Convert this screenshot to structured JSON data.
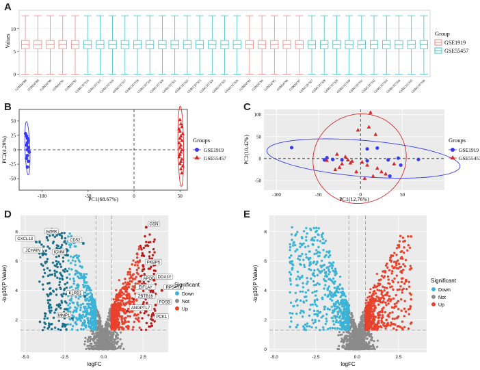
{
  "panel_labels": {
    "a": "A",
    "b": "B",
    "c": "C",
    "d": "D",
    "e": "E"
  },
  "colors": {
    "gse1919": "#f08080",
    "gse55457": "#3cbfc4",
    "pca1919": "#3a3aee",
    "pca55457": "#d62728",
    "down": "#3bb3d6",
    "not": "#8a8a8a",
    "up": "#e8412c",
    "dark_down": "#1a6f8c",
    "dark_up": "#b81e1e"
  },
  "chart_data": [
    {
      "id": "A",
      "type": "boxplot",
      "title": "",
      "ylabel": "Values",
      "ylim": [
        -0.5,
        14
      ],
      "yticks": [
        0,
        5,
        10
      ],
      "box": {
        "min": 0,
        "q1": 5.6,
        "median": 6.5,
        "q3": 7.4,
        "max": 12.8
      },
      "samples": [
        {
          "name": "GSM24788",
          "group": "GSE1919"
        },
        {
          "name": "GSM24789",
          "group": "GSE1919"
        },
        {
          "name": "GSM24790",
          "group": "GSE1919"
        },
        {
          "name": "GSM24791",
          "group": "GSE1919"
        },
        {
          "name": "GSM24792",
          "group": "GSE1919"
        },
        {
          "name": "GSM1337314",
          "group": "GSE55457"
        },
        {
          "name": "GSM1337315",
          "group": "GSE55457"
        },
        {
          "name": "GSM1337316",
          "group": "GSE55457"
        },
        {
          "name": "GSM1337317",
          "group": "GSE55457"
        },
        {
          "name": "GSM1337318",
          "group": "GSE55457"
        },
        {
          "name": "GSM1337319",
          "group": "GSE55457"
        },
        {
          "name": "GSM1337320",
          "group": "GSE55457"
        },
        {
          "name": "GSM1337321",
          "group": "GSE55457"
        },
        {
          "name": "GSM1337322",
          "group": "GSE55457"
        },
        {
          "name": "GSM1337323",
          "group": "GSE55457"
        },
        {
          "name": "GSM1337324",
          "group": "GSE55457"
        },
        {
          "name": "GSM1337325",
          "group": "GSE55457"
        },
        {
          "name": "GSM1337326",
          "group": "GSE55457"
        },
        {
          "name": "GSM24793",
          "group": "GSE1919"
        },
        {
          "name": "GSM24794",
          "group": "GSE1919"
        },
        {
          "name": "GSM24795",
          "group": "GSE1919"
        },
        {
          "name": "GSM24796",
          "group": "GSE1919"
        },
        {
          "name": "GSM24797",
          "group": "GSE1919"
        },
        {
          "name": "GSM1337327",
          "group": "GSE55457"
        },
        {
          "name": "GSM1337328",
          "group": "GSE55457"
        },
        {
          "name": "GSM1337329",
          "group": "GSE55457"
        },
        {
          "name": "GSM1337330",
          "group": "GSE55457"
        },
        {
          "name": "GSM1337331",
          "group": "GSE55457"
        },
        {
          "name": "GSM1337332",
          "group": "GSE55457"
        },
        {
          "name": "GSM1337333",
          "group": "GSE55457"
        },
        {
          "name": "GSM1337334",
          "group": "GSE55457"
        },
        {
          "name": "GSM1337335",
          "group": "GSE55457"
        },
        {
          "name": "GSM1337336",
          "group": "GSE55457"
        }
      ],
      "legend": {
        "title": "Group",
        "items": [
          "GSE1919",
          "GSE55457"
        ],
        "position": "right"
      }
    },
    {
      "id": "B",
      "type": "scatter",
      "xlabel": "PC1(68.67%)",
      "ylabel": "PC2(4.29%)",
      "xlim": [
        -125,
        58
      ],
      "ylim": [
        -70,
        70
      ],
      "xticks": [
        -100,
        -50,
        0,
        50
      ],
      "yticks": [
        -50,
        -25,
        0,
        25,
        50
      ],
      "series": [
        {
          "name": "GSE1919",
          "shape": "circle",
          "x": [
            -118,
            -117,
            -116,
            -115,
            -116,
            -117,
            -115,
            -116,
            -114,
            -116,
            -117,
            -115,
            -116
          ],
          "y": [
            28,
            24,
            20,
            16,
            12,
            8,
            4,
            0,
            -4,
            -10,
            -15,
            -20,
            -30
          ]
        },
        {
          "name": "GSE55457",
          "shape": "triangle",
          "x": [
            50,
            51,
            52,
            49,
            50,
            53,
            51,
            50,
            52,
            49,
            51,
            50,
            52,
            51,
            50,
            49,
            52,
            51,
            50,
            53,
            51,
            52
          ],
          "y": [
            52,
            45,
            40,
            36,
            32,
            28,
            24,
            20,
            16,
            12,
            8,
            4,
            0,
            -4,
            -8,
            -12,
            -16,
            -20,
            -24,
            -28,
            -33,
            -40
          ]
        }
      ],
      "legend": {
        "title": "Groups",
        "items": [
          "GSE1919",
          "GSE55457"
        ],
        "position": "right"
      }
    },
    {
      "id": "C",
      "type": "scatter",
      "xlabel": "PC1(12.76%)",
      "ylabel": "PC2(10.42%)",
      "xlim": [
        -115,
        100
      ],
      "ylim": [
        -72,
        112
      ],
      "xticks": [
        -100,
        -50,
        0,
        50
      ],
      "yticks": [
        -50,
        0,
        50,
        100
      ],
      "series": [
        {
          "name": "GSE1919",
          "shape": "circle",
          "x": [
            -82,
            -40,
            -43,
            -33,
            -22,
            8,
            20,
            8,
            33,
            45,
            48,
            69,
            35
          ],
          "y": [
            25,
            2,
            -3,
            -2,
            -3,
            22,
            24,
            -5,
            -3,
            1,
            -15,
            -2,
            -40
          ]
        },
        {
          "name": "GSE55457",
          "shape": "triangle",
          "x": [
            12,
            10,
            -3,
            18,
            -28,
            -18,
            -15,
            -10,
            -22,
            -25,
            -30,
            -12,
            -40,
            2,
            8,
            20,
            25,
            30,
            15,
            40,
            5,
            -5
          ],
          "y": [
            105,
            72,
            65,
            55,
            10,
            4,
            -3,
            -6,
            -12,
            -20,
            -25,
            -10,
            -4,
            -8,
            -15,
            -22,
            -30,
            -35,
            -40,
            -12,
            -45,
            -30
          ]
        }
      ],
      "legend": {
        "title": "Groups",
        "items": [
          "GSE1919",
          "GSE55457"
        ],
        "position": "right"
      }
    },
    {
      "id": "D",
      "type": "scatter",
      "subtype": "volcano",
      "xlabel": "logFC",
      "ylabel": "-log10(P Value)",
      "xlim": [
        -5.3,
        4.1
      ],
      "ylim": [
        -0.2,
        9.1
      ],
      "xticks": [
        -5,
        -2.5,
        0,
        2.5
      ],
      "yticks": [
        2,
        4,
        6,
        8
      ],
      "thresholds": {
        "logfc": 0.5,
        "p": 1.3
      },
      "labels": [
        {
          "text": "GZMK",
          "x": -2.8,
          "y": 7.8
        },
        {
          "text": "CXCL13",
          "x": -4.3,
          "y": 7.3
        },
        {
          "text": "CD52",
          "x": -1.3,
          "y": 7.2
        },
        {
          "text": "JCHAIN",
          "x": -3.8,
          "y": 6.5
        },
        {
          "text": "IGHM",
          "x": -2.3,
          "y": 6.4
        },
        {
          "text": "KLRB1",
          "x": -1.2,
          "y": 3.6
        },
        {
          "text": "MMP1",
          "x": -2.0,
          "y": 2.1
        },
        {
          "text": "GSN",
          "x": 2.7,
          "y": 8.3
        },
        {
          "text": "PKBP5",
          "x": 2.5,
          "y": 5.7
        },
        {
          "text": "APOD",
          "x": 2.3,
          "y": 4.6
        },
        {
          "text": "DDX3Y",
          "x": 3.2,
          "y": 4.7
        },
        {
          "text": "EIF1AY",
          "x": 1.9,
          "y": 4.0
        },
        {
          "text": "RPS4Y1",
          "x": 3.7,
          "y": 4.0
        },
        {
          "text": "ZBTB16",
          "x": 1.9,
          "y": 3.4
        },
        {
          "text": "FOSB",
          "x": 3.3,
          "y": 3.0
        },
        {
          "text": "ANGPTL7",
          "x": 1.5,
          "y": 2.6
        },
        {
          "text": "PCK1",
          "x": 3.1,
          "y": 2.0
        }
      ],
      "legend": {
        "title": "Significant",
        "items": [
          "Down",
          "Not",
          "Up"
        ],
        "position": "right"
      }
    },
    {
      "id": "E",
      "type": "scatter",
      "subtype": "volcano",
      "xlabel": "logFC",
      "ylabel": "-log10(P Value)",
      "xlim": [
        -5.3,
        4.2
      ],
      "ylim": [
        -0.2,
        9.1
      ],
      "xticks": [
        -5,
        -2.5,
        0,
        2.5
      ],
      "yticks": [
        0,
        2,
        4,
        6,
        8
      ],
      "thresholds": {
        "logfc": 0.5,
        "p": 1.3
      },
      "legend": {
        "title": "Significant",
        "items": [
          "Down",
          "Not",
          "Up"
        ],
        "position": "right"
      }
    }
  ]
}
